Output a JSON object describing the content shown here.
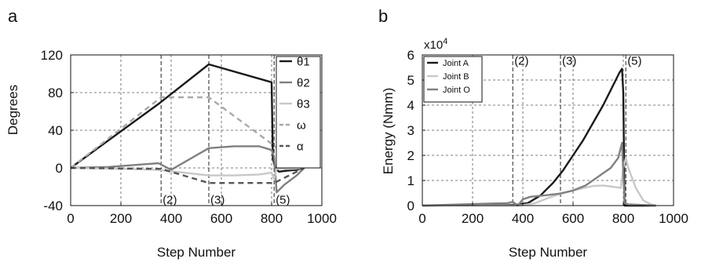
{
  "chart_data": [
    {
      "panel_label": "a",
      "type": "line",
      "xlabel": "Step Number",
      "ylabel": "Degrees",
      "xlim": [
        0,
        1000
      ],
      "ylim": [
        -40,
        120
      ],
      "xticks": [
        0,
        200,
        400,
        600,
        800,
        1000
      ],
      "yticks": [
        -40,
        0,
        40,
        80,
        120
      ],
      "grid": "dashed",
      "legend_position": "top-right",
      "phase_lines": [
        360,
        550,
        810
      ],
      "phase_labels": [
        {
          "text": "(2)",
          "x": 360,
          "y": -33
        },
        {
          "text": "(3)",
          "x": 550,
          "y": -33
        },
        {
          "text": "(5)",
          "x": 810,
          "y": -33
        }
      ],
      "series": [
        {
          "name": "θ1",
          "color": "#1a1a1a",
          "dash": false,
          "x": [
            0,
            350,
            550,
            800,
            805,
            815,
            830,
            860,
            900,
            930
          ],
          "y": [
            0,
            68,
            110,
            91,
            10,
            -1,
            -4,
            -3,
            -2,
            0
          ]
        },
        {
          "name": "θ2",
          "color": "#7f7f7f",
          "dash": false,
          "x": [
            0,
            150,
            300,
            350,
            400,
            550,
            650,
            750,
            800,
            810,
            820,
            850,
            900,
            930
          ],
          "y": [
            0,
            1,
            4,
            5,
            -2,
            21,
            23,
            23,
            19,
            12,
            -26,
            -18,
            -8,
            0
          ]
        },
        {
          "name": "θ3",
          "color": "#c8c8c8",
          "dash": false,
          "x": [
            0,
            200,
            350,
            450,
            550,
            650,
            750,
            800,
            810,
            820,
            880,
            930
          ],
          "y": [
            0,
            -1,
            -2,
            -5,
            -8,
            -8,
            -7,
            -5,
            -12,
            -1,
            -1,
            0
          ]
        },
        {
          "name": "ω",
          "color": "#a9a9a9",
          "dash": true,
          "x": [
            0,
            360,
            550,
            930
          ],
          "y": [
            0,
            75,
            75,
            0
          ]
        },
        {
          "name": "α",
          "color": "#555555",
          "dash": true,
          "x": [
            0,
            360,
            550,
            810,
            930
          ],
          "y": [
            0,
            -1,
            -16,
            -16,
            0
          ]
        }
      ]
    },
    {
      "panel_label": "b",
      "type": "line",
      "xlabel": "Step Number",
      "ylabel": "Energy (Nmm)",
      "exponent_label": "x10",
      "exponent_power": "4",
      "xlim": [
        0,
        1000
      ],
      "ylim": [
        0,
        6
      ],
      "xticks": [
        0,
        200,
        400,
        600,
        800,
        1000
      ],
      "yticks": [
        0,
        1,
        2,
        3,
        4,
        5,
        6
      ],
      "grid": "dashed",
      "legend_position": "top-left",
      "phase_lines": [
        360,
        550,
        810
      ],
      "phase_labels": [
        {
          "text": "(2)",
          "x": 360,
          "y": 5.8
        },
        {
          "text": "(3)",
          "x": 550,
          "y": 5.8
        },
        {
          "text": "(5)",
          "x": 810,
          "y": 5.8
        }
      ],
      "series": [
        {
          "name": "Joint A",
          "color": "#1a1a1a",
          "x": [
            0,
            340,
            380,
            420,
            470,
            520,
            560,
            600,
            640,
            680,
            720,
            750,
            770,
            785,
            795,
            800,
            805,
            930
          ],
          "y": [
            0,
            0.02,
            0.04,
            0.1,
            0.4,
            0.9,
            1.4,
            2.0,
            2.6,
            3.3,
            4.0,
            4.6,
            5.0,
            5.3,
            5.45,
            4.5,
            0,
            0
          ]
        },
        {
          "name": "Joint B",
          "color": "#c8c8c8",
          "x": [
            0,
            380,
            400,
            450,
            500,
            560,
            620,
            680,
            720,
            760,
            790,
            800,
            810,
            820,
            850,
            880,
            910,
            930
          ],
          "y": [
            0,
            0,
            0.02,
            0.1,
            0.3,
            0.5,
            0.65,
            0.78,
            0.8,
            0.75,
            0.7,
            1.5,
            1.9,
            1.5,
            0.7,
            0.2,
            0.05,
            0
          ]
        },
        {
          "name": "Joint O",
          "color": "#808080",
          "x": [
            0,
            340,
            360,
            380,
            400,
            430,
            460,
            500,
            550,
            600,
            650,
            700,
            750,
            780,
            795,
            805,
            820,
            930
          ],
          "y": [
            0,
            0.1,
            0.15,
            0,
            0.25,
            0.35,
            0.38,
            0.42,
            0.48,
            0.6,
            0.8,
            1.15,
            1.5,
            1.9,
            2.5,
            0.1,
            0.05,
            0
          ]
        }
      ]
    }
  ]
}
